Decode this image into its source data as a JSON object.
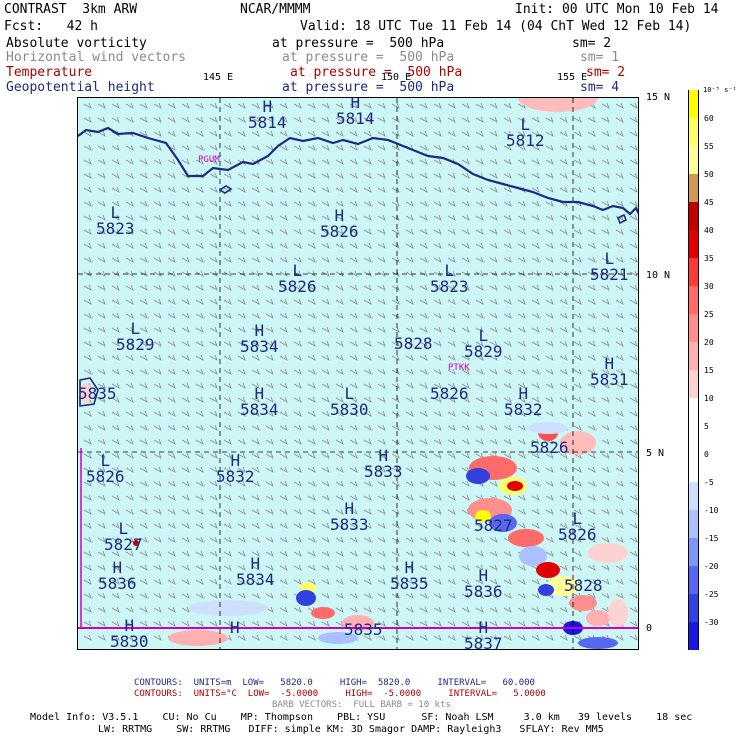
{
  "header": {
    "product": "CONTRAST  3km ARW",
    "org": "NCAR/MMMM",
    "init": "Init: 00 UTC Mon 10 Feb 14",
    "fcst": "Fcst:   42 h",
    "valid": "Valid: 18 UTC Tue 11 Feb 14 (04 ChT Wed 12 Feb 14)"
  },
  "fields": [
    {
      "name": "Absolute vorticity",
      "level": "at pressure =  500 hPa",
      "sm": "sm= 2",
      "color": "#000000"
    },
    {
      "name": "Horizontal wind vectors",
      "level": "at pressure =  500 hPa",
      "sm": "sm= 1",
      "color": "#8a8a8a"
    },
    {
      "name": "Temperature",
      "level": "at pressure =  500 hPa",
      "sm": "sm= 2",
      "color": "#b00000"
    },
    {
      "name": "Geopotential height",
      "level": "at pressure =  500 hPa",
      "sm": "sm= 4",
      "color": "#1c2a80"
    }
  ],
  "map": {
    "lon_labels": [
      "145 E",
      "150 E",
      "155 E"
    ],
    "lat_labels": [
      "15 N",
      "10 N",
      "5 N",
      "0"
    ],
    "stations": [
      "PGUM",
      "PTKK"
    ],
    "centers": [
      {
        "t": "H",
        "v": "5814"
      },
      {
        "t": "H",
        "v": "5814"
      },
      {
        "t": "L",
        "v": "5812"
      },
      {
        "t": "L",
        "v": "5823"
      },
      {
        "t": "H",
        "v": "5826"
      },
      {
        "t": "L",
        "v": "5821"
      },
      {
        "t": "L",
        "v": "5826"
      },
      {
        "t": "L",
        "v": "5823"
      },
      {
        "t": "L",
        "v": "5829"
      },
      {
        "t": "H",
        "v": "5834"
      },
      {
        "t": "",
        "v": "5828"
      },
      {
        "t": "L",
        "v": "5829"
      },
      {
        "t": "H",
        "v": "5831"
      },
      {
        "t": "",
        "v": "5835"
      },
      {
        "t": "H",
        "v": "5834"
      },
      {
        "t": "L",
        "v": "5830"
      },
      {
        "t": "",
        "v": "5826"
      },
      {
        "t": "H",
        "v": "5832"
      },
      {
        "t": "L",
        "v": "5826"
      },
      {
        "t": "H",
        "v": "5832"
      },
      {
        "t": "H",
        "v": "5833"
      },
      {
        "t": "",
        "v": "5826"
      },
      {
        "t": "L",
        "v": "5827"
      },
      {
        "t": "H",
        "v": "5833"
      },
      {
        "t": "",
        "v": "5827"
      },
      {
        "t": "L",
        "v": "5826"
      },
      {
        "t": "H",
        "v": "5836"
      },
      {
        "t": "H",
        "v": "5834"
      },
      {
        "t": "H",
        "v": "5835"
      },
      {
        "t": "H",
        "v": "5836"
      },
      {
        "t": "",
        "v": "5828"
      },
      {
        "t": "H",
        "v": "5830"
      },
      {
        "t": "H",
        "v": ""
      },
      {
        "t": "",
        "v": "5835"
      },
      {
        "t": "H",
        "v": "5837"
      }
    ]
  },
  "colorbar": {
    "unit": "10⁻⁵ s⁻¹",
    "ticks": [
      "60",
      "55",
      "50",
      "45",
      "40",
      "35",
      "30",
      "25",
      "20",
      "15",
      "10",
      "5",
      "0",
      "-5",
      "-10",
      "-15",
      "-20",
      "-25",
      "-30"
    ],
    "colors": [
      "#ffff00",
      "#ffff66",
      "#ffff99",
      "#cc9955",
      "#c00000",
      "#e00000",
      "#ff3a3a",
      "#ff6a6a",
      "#ff8f8f",
      "#ffb0b0",
      "#ffd2d2",
      "#ffffff",
      "#ffffff",
      "#ffffff",
      "#cfe0ff",
      "#aac0ff",
      "#7e96f5",
      "#5868ee",
      "#3240e0",
      "#1818e0"
    ]
  },
  "footer": {
    "contours1": "CONTOURS:  UNITS=m  LOW=   5820.0     HIGH=  5820.0     INTERVAL=   60.000",
    "contours2": "CONTOURS:  UNITS=°C  LOW=  -5.0000     HIGH=  -5.0000     INTERVAL=   5.0000",
    "barbs": "BARB VECTORS:  FULL BARB = 10 kts",
    "model1": "Model Info: V3.5.1    CU: No Cu    MP: Thompson    PBL: YSU      SF: Noah LSM     3.0 km   39 levels    18 sec",
    "model2": "LW: RRTMG    SW: RRTMG   DIFF: simple KM: 3D Smagor DAMP: Rayleigh3   SFLAY: Rev MM5"
  }
}
